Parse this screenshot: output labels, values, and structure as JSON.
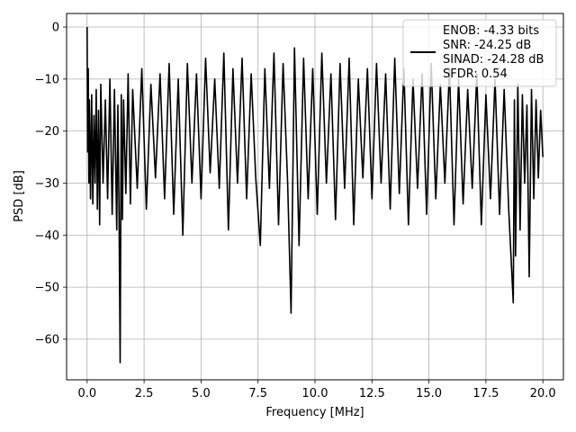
{
  "chart_data": {
    "type": "line",
    "xlabel": "Frequency [MHz]",
    "ylabel": "PSD [dB]",
    "xlim": [
      -0.9,
      20.9
    ],
    "ylim": [
      -67.8,
      2.6
    ],
    "xticks": [
      0.0,
      2.5,
      5.0,
      7.5,
      10.0,
      12.5,
      15.0,
      17.5,
      20.0
    ],
    "xtick_labels": [
      "0.0",
      "2.5",
      "5.0",
      "7.5",
      "10.0",
      "12.5",
      "15.0",
      "17.5",
      "20.0"
    ],
    "yticks": [
      0,
      -10,
      -20,
      -30,
      -40,
      -50,
      -60
    ],
    "ytick_labels": [
      "0",
      "−10",
      "−20",
      "−30",
      "−40",
      "−50",
      "−60"
    ],
    "grid": true,
    "line_color": "#000000",
    "legend": {
      "placement": "top-right",
      "entries": [
        "ENOB: -4.33 bits",
        "SNR: -24.25 dB",
        "SINAD: -24.28 dB",
        "SFDR: 0.54"
      ]
    },
    "series": [
      {
        "x": [
          0.0,
          0.02,
          0.05,
          0.08,
          0.1,
          0.15,
          0.2,
          0.25,
          0.3,
          0.35,
          0.4,
          0.45,
          0.5,
          0.55,
          0.6,
          0.7,
          0.8,
          0.9,
          1.0,
          1.1,
          1.2,
          1.3,
          1.35,
          1.4,
          1.45,
          1.5,
          1.55,
          1.6,
          1.7,
          1.8,
          1.9,
          2.0,
          2.2,
          2.4,
          2.6,
          2.8,
          3.0,
          3.2,
          3.4,
          3.6,
          3.8,
          4.0,
          4.2,
          4.4,
          4.6,
          4.8,
          5.0,
          5.2,
          5.4,
          5.6,
          5.8,
          6.0,
          6.2,
          6.4,
          6.6,
          6.8,
          7.0,
          7.2,
          7.4,
          7.6,
          7.8,
          8.0,
          8.2,
          8.4,
          8.6,
          8.8,
          8.95,
          9.1,
          9.3,
          9.5,
          9.7,
          9.9,
          10.1,
          10.3,
          10.5,
          10.7,
          10.9,
          11.1,
          11.3,
          11.5,
          11.7,
          11.9,
          12.1,
          12.3,
          12.5,
          12.7,
          12.9,
          13.1,
          13.3,
          13.5,
          13.7,
          13.9,
          14.1,
          14.3,
          14.5,
          14.7,
          14.9,
          15.1,
          15.3,
          15.5,
          15.7,
          15.9,
          16.1,
          16.3,
          16.5,
          16.7,
          16.9,
          17.1,
          17.3,
          17.5,
          17.7,
          17.9,
          18.1,
          18.3,
          18.5,
          18.7,
          18.75,
          18.8,
          18.9,
          19.0,
          19.1,
          19.2,
          19.3,
          19.4,
          19.5,
          19.6,
          19.7,
          19.8,
          19.9,
          20.0
        ],
        "y": [
          0.0,
          -24,
          -8,
          -30,
          -14,
          -33,
          -13,
          -34,
          -17,
          -30,
          -12,
          -35,
          -16,
          -38,
          -11,
          -30,
          -14,
          -33,
          -10,
          -36,
          -12,
          -39,
          -15,
          -35,
          -64.5,
          -13,
          -37,
          -14,
          -32,
          -9,
          -34,
          -12,
          -31,
          -8,
          -35,
          -11,
          -29,
          -9,
          -33,
          -7,
          -36,
          -10,
          -40,
          -7,
          -30,
          -9,
          -33,
          -6,
          -28,
          -10,
          -31,
          -5,
          -39,
          -8,
          -30,
          -6,
          -33,
          -9,
          -29,
          -42,
          -8,
          -31,
          -5,
          -38,
          -7,
          -30,
          -55,
          -4,
          -42,
          -6,
          -33,
          -8,
          -36,
          -5,
          -30,
          -9,
          -37,
          -7,
          -31,
          -6,
          -38,
          -10,
          -29,
          -8,
          -33,
          -7,
          -30,
          -9,
          -35,
          -6,
          -32,
          -8,
          -38,
          -10,
          -31,
          -9,
          -36,
          -7,
          -33,
          -11,
          -30,
          -8,
          -38,
          -10,
          -34,
          -12,
          -31,
          -9,
          -38,
          -13,
          -33,
          -10,
          -36,
          -12,
          -35,
          -53,
          -14,
          -44,
          -11,
          -39,
          -13,
          -30,
          -15,
          -48,
          -12,
          -33,
          -14,
          -29,
          -16,
          -25
        ]
      }
    ]
  }
}
